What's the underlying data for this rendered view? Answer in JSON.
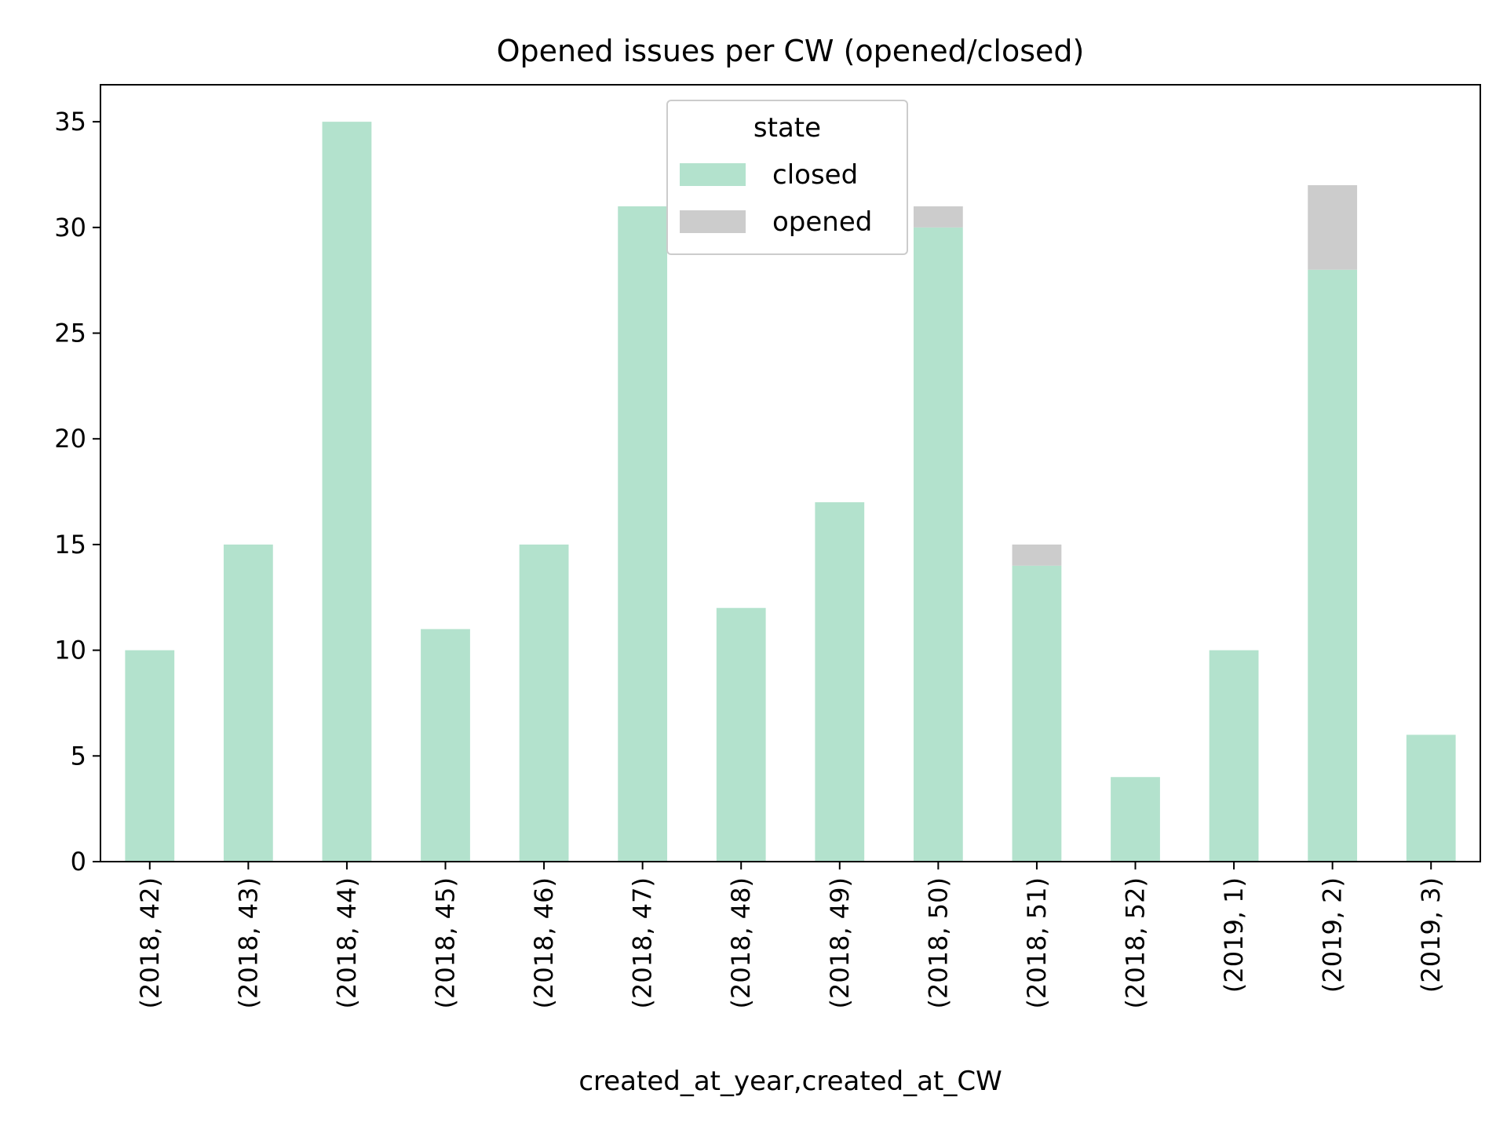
{
  "chart_data": {
    "type": "bar",
    "stacked": true,
    "title": "Opened issues per CW (opened/closed)",
    "xlabel": "created_at_year,created_at_CW",
    "ylabel": "",
    "ylim": [
      0,
      36.75
    ],
    "yticks": [
      0,
      5,
      10,
      15,
      20,
      25,
      30,
      35
    ],
    "grid": false,
    "categories": [
      "(2018, 42)",
      "(2018, 43)",
      "(2018, 44)",
      "(2018, 45)",
      "(2018, 46)",
      "(2018, 47)",
      "(2018, 48)",
      "(2018, 49)",
      "(2018, 50)",
      "(2018, 51)",
      "(2018, 52)",
      "(2019, 1)",
      "(2019, 2)",
      "(2019, 3)"
    ],
    "series": [
      {
        "name": "closed",
        "color": "#b3e2cd",
        "values": [
          10,
          15,
          35,
          11,
          15,
          31,
          12,
          17,
          30,
          14,
          4,
          10,
          28,
          6
        ]
      },
      {
        "name": "opened",
        "color": "#cccccc",
        "values": [
          0,
          0,
          0,
          0,
          0,
          0,
          0,
          0,
          1,
          1,
          0,
          0,
          4,
          0
        ]
      }
    ],
    "legend": {
      "title": "state",
      "placement": "upper center"
    }
  }
}
